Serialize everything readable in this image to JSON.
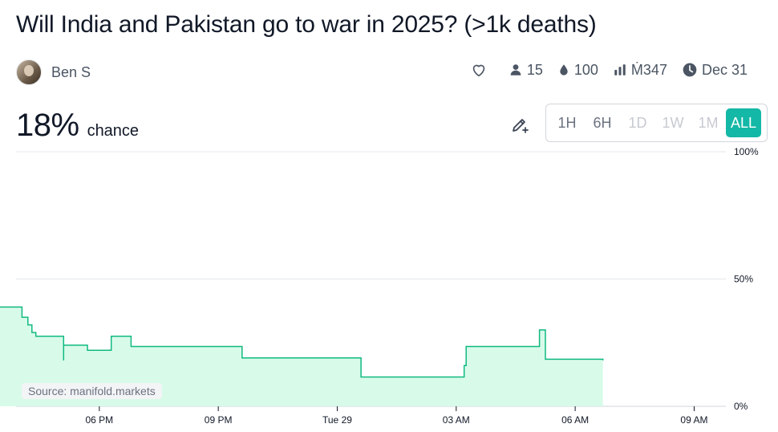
{
  "title": "Will India and Pakistan go to war in 2025? (>1k deaths)",
  "author": {
    "name": "Ben S"
  },
  "stats": {
    "traders": "15",
    "liquidity": "100",
    "volume": "Ṁ347",
    "close_date": "Dec 31"
  },
  "probability": {
    "value": "18%",
    "label": "chance"
  },
  "time_ranges": [
    {
      "label": "1H",
      "state": "enabled"
    },
    {
      "label": "6H",
      "state": "enabled"
    },
    {
      "label": "1D",
      "state": "disabled"
    },
    {
      "label": "1W",
      "state": "disabled"
    },
    {
      "label": "1M",
      "state": "disabled"
    },
    {
      "label": "ALL",
      "state": "active"
    }
  ],
  "source_label": "Source: manifold.markets",
  "colors": {
    "accent": "#14b8a6",
    "line": "#11b981",
    "fill": "#d1fae5"
  },
  "chart_data": {
    "type": "area",
    "step": true,
    "x_unit": "hours since 15:00 (Mon)",
    "x": [
      0,
      0.05,
      0.1,
      0.4,
      0.4,
      1.05,
      1.05,
      1.2,
      1.2,
      1.3,
      1.3,
      1.4,
      1.4,
      2.1,
      2.1,
      2.1,
      2.1,
      2.7,
      2.7,
      3.3,
      3.3,
      3.8,
      3.8,
      6.6,
      6.6,
      9.6,
      9.6,
      12.2,
      12.2,
      12.25,
      12.25,
      14.1,
      14.1,
      14.25,
      14.25,
      15.7,
      15.7
    ],
    "y": [
      50,
      45,
      42,
      42,
      39,
      39,
      35,
      35,
      32,
      32,
      29,
      29,
      27.5,
      27.5,
      24,
      18,
      24,
      24,
      22,
      22,
      27.5,
      27.5,
      23.5,
      23.5,
      19,
      19,
      11.5,
      11.5,
      16,
      16,
      23.5,
      23.5,
      30,
      30,
      18.5,
      18.5,
      18
    ],
    "x_ticks": [
      {
        "value": 3,
        "label": "06 PM"
      },
      {
        "value": 6,
        "label": "09 PM"
      },
      {
        "value": 9,
        "label": "Tue 29"
      },
      {
        "value": 12,
        "label": "03 AM"
      },
      {
        "value": 15,
        "label": "06 AM"
      },
      {
        "value": 18,
        "label": "09 AM"
      }
    ],
    "y_ticks": [
      {
        "value": 100,
        "label": "100%"
      },
      {
        "value": 50,
        "label": "50%"
      },
      {
        "value": 0,
        "label": "0%"
      }
    ],
    "xlim": [
      0.9,
      18.8
    ],
    "ylim": [
      0,
      100
    ],
    "grid": true,
    "legend": "none"
  }
}
